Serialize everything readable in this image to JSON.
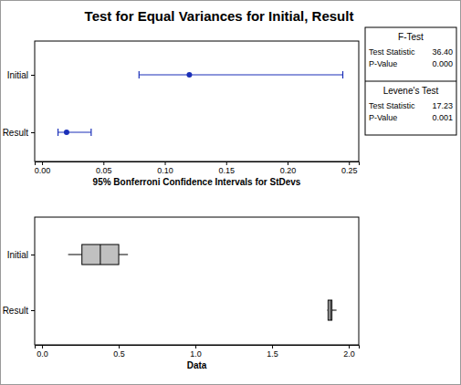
{
  "chart_data": [
    {
      "type": "interval",
      "title": "Test for Equal Variances for Initial, Result",
      "xlabel": "95% Bonferroni Confidence Intervals for StDevs",
      "categories": [
        "Initial",
        "Result"
      ],
      "values": [
        0.12,
        0.02
      ],
      "lower": [
        0.079,
        0.013
      ],
      "upper": [
        0.245,
        0.04
      ],
      "xlim": [
        -0.006,
        0.258
      ],
      "xticks": [
        {
          "value": 0,
          "label": "0.00"
        },
        {
          "value": 0.05,
          "label": "0.05"
        },
        {
          "value": 0.1,
          "label": "0.10"
        },
        {
          "value": 0.15,
          "label": "0.15"
        },
        {
          "value": 0.2,
          "label": "0.20"
        },
        {
          "value": 0.25,
          "label": "0.25"
        }
      ],
      "color": "#1a2fb8",
      "tests": [
        {
          "name": "F-Test",
          "rows": [
            {
              "label": "Test Statistic",
              "value": 36.4,
              "value_label": "36.40"
            },
            {
              "label": "P-Value",
              "value": 0,
              "value_label": "0.000"
            }
          ]
        },
        {
          "name": "Levene's Test",
          "rows": [
            {
              "label": "Test Statistic",
              "value": 17.23,
              "value_label": "17.23"
            },
            {
              "label": "P-Value",
              "value": 0.001,
              "value_label": "0.001"
            }
          ]
        }
      ]
    },
    {
      "type": "box",
      "xlabel": "Data",
      "categories": [
        "Initial",
        "Result"
      ],
      "min": [
        0.17,
        1.86
      ],
      "q1": [
        0.26,
        1.865
      ],
      "median": [
        0.38,
        1.88
      ],
      "q3": [
        0.5,
        1.89
      ],
      "max": [
        0.56,
        1.92
      ],
      "xlim": [
        -0.048,
        2.065
      ],
      "xticks": [
        {
          "value": 0,
          "label": "0.0"
        },
        {
          "value": 0.5,
          "label": "0.5"
        },
        {
          "value": 1,
          "label": "1.0"
        },
        {
          "value": 1.5,
          "label": "1.5"
        },
        {
          "value": 2,
          "label": "2.0"
        }
      ],
      "color": "#c0c0c0"
    }
  ]
}
